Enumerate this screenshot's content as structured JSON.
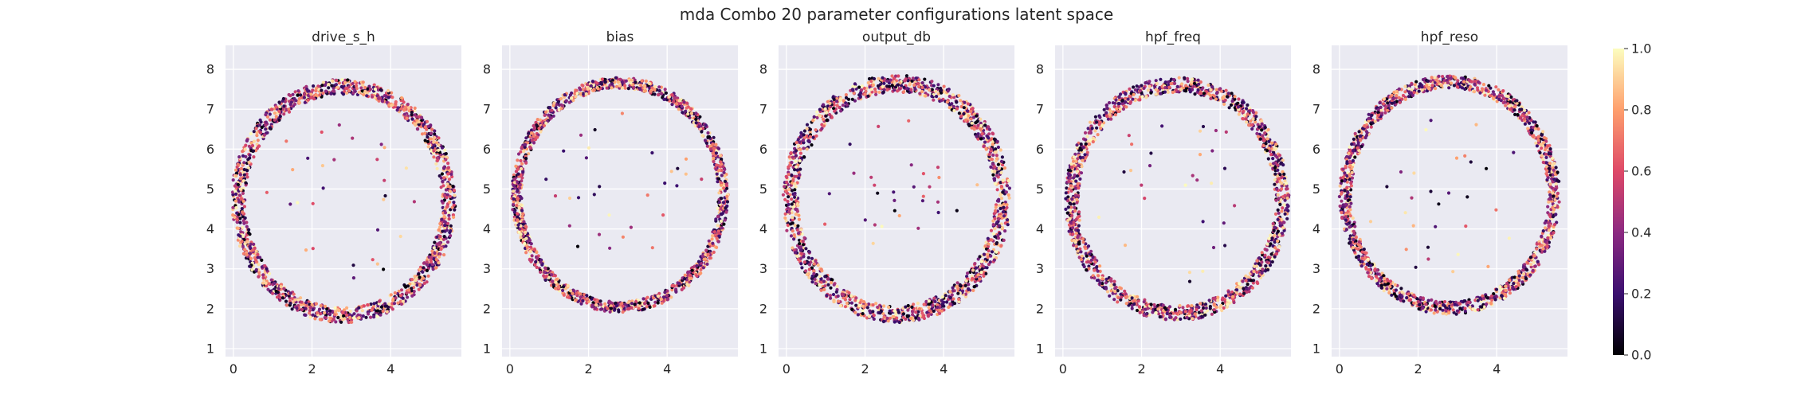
{
  "suptitle": "mda Combo 20 parameter configurations latent space",
  "chart_data": [
    {
      "type": "scatter",
      "title": "drive_s_h",
      "xlim": [
        -0.2,
        5.8
      ],
      "ylim": [
        0.8,
        8.6
      ],
      "xticks": [
        "0",
        "2",
        "4"
      ],
      "yticks": [
        "1",
        "2",
        "3",
        "4",
        "5",
        "6",
        "7",
        "8"
      ],
      "ring": {
        "center": [
          2.8,
          4.7
        ],
        "radius": [
          2.5,
          2.85
        ],
        "n_points": 1400
      },
      "grid": true
    },
    {
      "type": "scatter",
      "title": "bias",
      "xlim": [
        -0.2,
        5.8
      ],
      "ylim": [
        0.8,
        8.6
      ],
      "xticks": [
        "0",
        "2",
        "4"
      ],
      "yticks": [
        "1",
        "2",
        "3",
        "4",
        "5",
        "6",
        "7",
        "8"
      ],
      "ring": {
        "center": [
          2.8,
          4.85
        ],
        "radius": [
          2.5,
          2.75
        ],
        "n_points": 1400
      },
      "grid": true
    },
    {
      "type": "scatter",
      "title": "output_db",
      "xlim": [
        -0.2,
        5.8
      ],
      "ylim": [
        0.8,
        8.6
      ],
      "xticks": [
        "0",
        "2",
        "4"
      ],
      "yticks": [
        "1",
        "2",
        "3",
        "4",
        "5",
        "6",
        "7",
        "8"
      ],
      "ring": {
        "center": [
          2.8,
          4.75
        ],
        "radius": [
          2.5,
          2.9
        ],
        "n_points": 1400
      },
      "grid": true
    },
    {
      "type": "scatter",
      "title": "hpf_freq",
      "xlim": [
        -0.2,
        5.8
      ],
      "ylim": [
        0.8,
        8.6
      ],
      "xticks": [
        "0",
        "2",
        "4"
      ],
      "yticks": [
        "1",
        "2",
        "3",
        "4",
        "5",
        "6",
        "7",
        "8"
      ],
      "ring": {
        "center": [
          2.9,
          4.75
        ],
        "radius": [
          2.5,
          2.85
        ],
        "n_points": 1400
      },
      "grid": true
    },
    {
      "type": "scatter",
      "title": "hpf_reso",
      "xlim": [
        -0.2,
        5.8
      ],
      "ylim": [
        0.8,
        8.6
      ],
      "xticks": [
        "0",
        "2",
        "4"
      ],
      "yticks": [
        "1",
        "2",
        "3",
        "4",
        "5",
        "6",
        "7",
        "8"
      ],
      "ring": {
        "center": [
          2.8,
          4.85
        ],
        "radius": [
          2.5,
          2.8
        ],
        "n_points": 1400
      },
      "grid": true
    }
  ],
  "colorbar": {
    "range": [
      0.0,
      1.0
    ],
    "ticks": [
      "0.0",
      "0.2",
      "0.4",
      "0.6",
      "0.8",
      "1.0"
    ],
    "colormap": [
      "#000004",
      "#3b0f70",
      "#8c2981",
      "#de4968",
      "#fe9f6d",
      "#fcfdbf"
    ]
  }
}
